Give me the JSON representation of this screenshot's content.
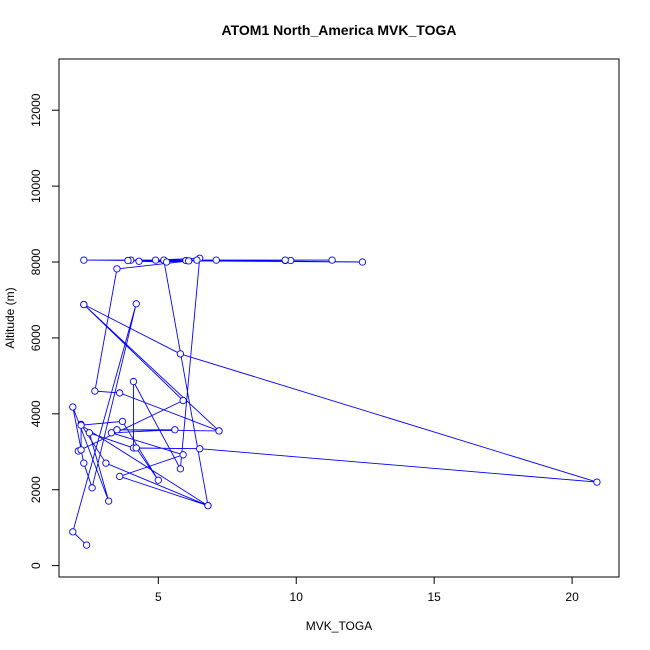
{
  "chart_data": {
    "type": "line",
    "title": "ATOM1 North_America MVK_TOGA",
    "xlabel": "MVK_TOGA",
    "ylabel": "Altitude (m)",
    "xlim": [
      1.4,
      21.7
    ],
    "ylim": [
      -300,
      13350
    ],
    "xticks": [
      5,
      10,
      15,
      20
    ],
    "yticks": [
      0,
      2000,
      4000,
      6000,
      8000,
      10000,
      12000
    ],
    "grid": false,
    "legend": "none",
    "marker": "open-circle",
    "color": "#0000ff",
    "series": [
      {
        "points": [
          [
            2.4,
            540
          ],
          [
            1.9,
            890
          ],
          [
            4.2,
            6900
          ],
          [
            2.6,
            2050
          ],
          [
            2.3,
            2700
          ],
          [
            1.9,
            4180
          ],
          [
            3.2,
            1700
          ],
          [
            2.5,
            3500
          ],
          [
            4.1,
            3100
          ],
          [
            4.1,
            4850
          ],
          [
            5.8,
            2550
          ],
          [
            6.5,
            8100
          ],
          [
            4.9,
            8050
          ],
          [
            12.4,
            8000
          ],
          [
            2.3,
            8050
          ],
          [
            11.3,
            8050
          ],
          [
            6.0,
            8040
          ],
          [
            9.6,
            8040
          ],
          [
            4.0,
            8050
          ],
          [
            9.8,
            8040
          ],
          [
            3.9,
            8040
          ],
          [
            6.1,
            8030
          ],
          [
            3.5,
            7820
          ],
          [
            2.7,
            4600
          ],
          [
            3.6,
            4550
          ],
          [
            7.2,
            3550
          ],
          [
            2.3,
            6880
          ],
          [
            5.9,
            4350
          ],
          [
            2.1,
            3020
          ],
          [
            2.2,
            3050
          ],
          [
            2.2,
            3720
          ],
          [
            3.1,
            2700
          ],
          [
            6.8,
            1580
          ],
          [
            3.6,
            2350
          ],
          [
            5.9,
            2920
          ],
          [
            3.3,
            3500
          ],
          [
            5.6,
            3580
          ],
          [
            3.5,
            3580
          ],
          [
            7.2,
            3550
          ],
          [
            2.3,
            6880
          ],
          [
            5.8,
            5580
          ],
          [
            20.9,
            2200
          ],
          [
            6.5,
            3080
          ],
          [
            4.2,
            3100
          ],
          [
            5.0,
            2250
          ],
          [
            3.7,
            3800
          ],
          [
            2.2,
            3700
          ],
          [
            6.8,
            1580
          ],
          [
            5.2,
            8050
          ],
          [
            6.4,
            8050
          ],
          [
            5.3,
            8000
          ],
          [
            4.3,
            8020
          ],
          [
            7.1,
            8050
          ],
          [
            9.6,
            8050
          ]
        ]
      }
    ]
  }
}
